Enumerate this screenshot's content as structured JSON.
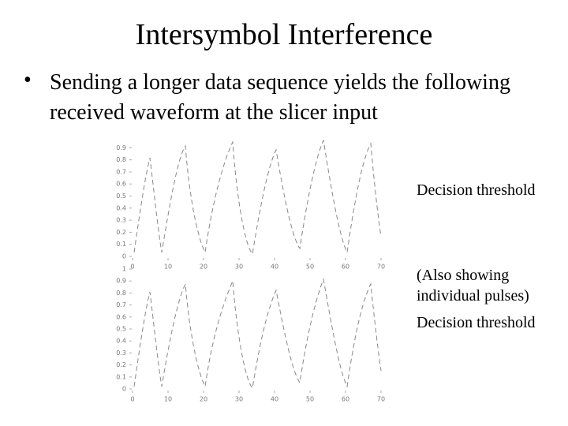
{
  "slide": {
    "title": "Intersymbol Interference",
    "bullet": "Sending a longer data sequence yields the following received waveform at the slicer input"
  },
  "chart_data": [
    {
      "type": "line",
      "xlim": [
        0,
        70
      ],
      "xticks": [
        0,
        10,
        20,
        30,
        40,
        50,
        60,
        70
      ],
      "ylim": [
        0,
        1
      ],
      "yticks": [
        0,
        0.1,
        0.2,
        0.3,
        0.4,
        0.5,
        0.6,
        0.7,
        0.8,
        0.9
      ],
      "annotations": [
        "Decision threshold"
      ]
    },
    {
      "type": "line",
      "xlim": [
        0,
        70
      ],
      "xticks": [
        0,
        10,
        20,
        30,
        40,
        50,
        60,
        70
      ],
      "ylim": [
        0,
        1
      ],
      "yticks": [
        0,
        0.1,
        0.2,
        0.3,
        0.4,
        0.5,
        0.6,
        0.7,
        0.8,
        0.9,
        1
      ],
      "annotations": [
        "(Also showing individual pulses)",
        "Decision threshold"
      ]
    }
  ]
}
